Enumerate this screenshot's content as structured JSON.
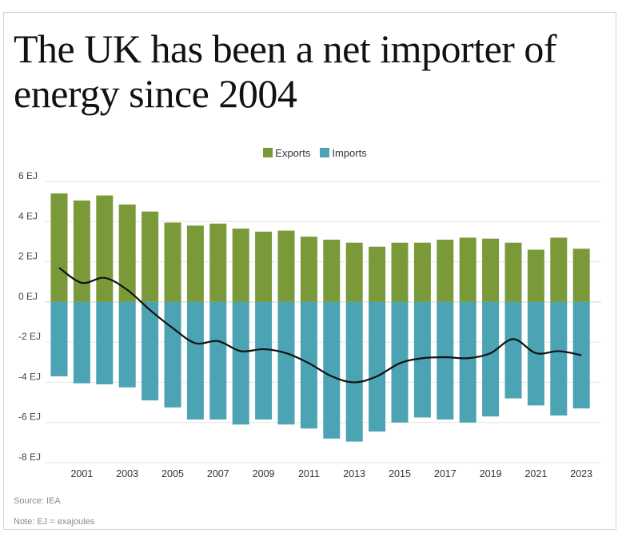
{
  "title": "The UK has been a net importer of energy since 2004",
  "title_lines": [
    "The UK has been a net importer of",
    "energy since 2004"
  ],
  "colors": {
    "exports": "#7a9a3a",
    "imports": "#4ba3b3",
    "net_line": "#111111",
    "grid": "#e3e3e3"
  },
  "source": "Source: IEA",
  "note": "Note: EJ = exajoules",
  "chart_data": {
    "type": "bar",
    "title": "The UK has been a net importer of energy since 2004",
    "xlabel": "",
    "ylabel": "",
    "ylim": [
      -8,
      6
    ],
    "yticks": [
      6,
      4,
      2,
      0,
      -2,
      -4,
      -6,
      -8
    ],
    "ytick_labels": [
      "6 EJ",
      "4 EJ",
      "2 EJ",
      "0 EJ",
      "-2 EJ",
      "-4 EJ",
      "-6 EJ",
      "-8 EJ"
    ],
    "categories": [
      2000,
      2001,
      2002,
      2003,
      2004,
      2005,
      2006,
      2007,
      2008,
      2009,
      2010,
      2011,
      2012,
      2013,
      2014,
      2015,
      2016,
      2017,
      2018,
      2019,
      2020,
      2021,
      2022,
      2023
    ],
    "xtick_labels": [
      "2001",
      "2003",
      "2005",
      "2007",
      "2009",
      "2011",
      "2013",
      "2015",
      "2017",
      "2019",
      "2021",
      "2023"
    ],
    "legend": [
      "Exports",
      "Imports"
    ],
    "legend_position": "top-center",
    "series": [
      {
        "name": "Exports",
        "kind": "bar",
        "values": [
          5.4,
          5.05,
          5.3,
          4.85,
          4.5,
          3.95,
          3.8,
          3.9,
          3.65,
          3.5,
          3.55,
          3.25,
          3.1,
          2.95,
          2.75,
          2.95,
          2.95,
          3.1,
          3.2,
          3.15,
          2.95,
          2.6,
          3.2,
          2.65
        ]
      },
      {
        "name": "Imports",
        "kind": "bar",
        "values": [
          -3.7,
          -4.05,
          -4.1,
          -4.25,
          -4.9,
          -5.25,
          -5.85,
          -5.85,
          -6.1,
          -5.85,
          -6.1,
          -6.3,
          -6.8,
          -6.95,
          -6.45,
          -6.0,
          -5.75,
          -5.85,
          -6.0,
          -5.7,
          -4.8,
          -5.15,
          -5.65,
          -5.3
        ]
      },
      {
        "name": "Net",
        "kind": "line",
        "values": [
          1.7,
          0.95,
          1.2,
          0.6,
          -0.4,
          -1.3,
          -2.05,
          -1.95,
          -2.45,
          -2.35,
          -2.55,
          -3.05,
          -3.7,
          -4.0,
          -3.7,
          -3.05,
          -2.8,
          -2.75,
          -2.8,
          -2.55,
          -1.85,
          -2.55,
          -2.45,
          -2.65
        ]
      }
    ]
  }
}
